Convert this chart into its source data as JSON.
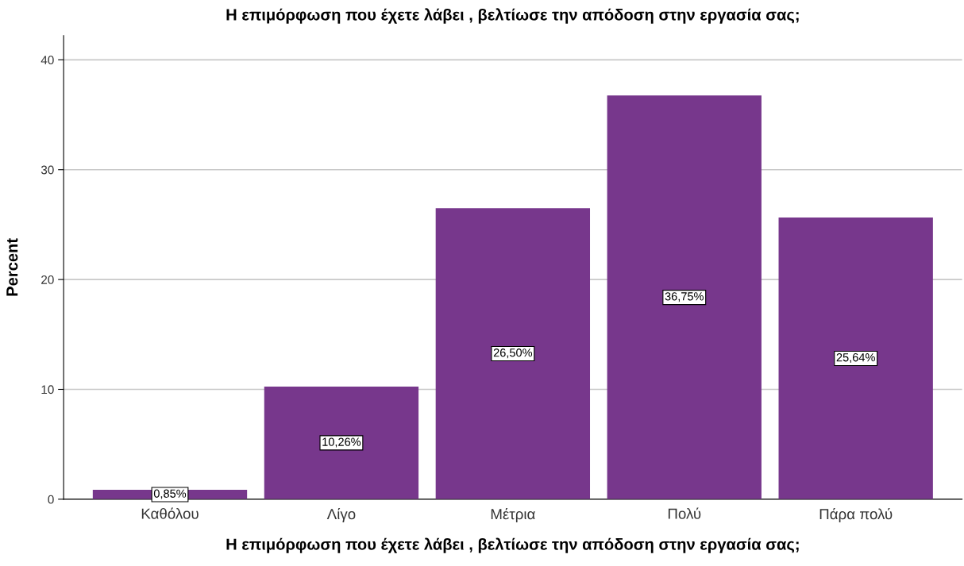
{
  "chart_data": {
    "type": "bar",
    "title": "Η επιμόρφωση που έχετε λάβει , βελτίωσε την απόδοση στην εργασία σας;",
    "xlabel": "Η επιμόρφωση που έχετε λάβει , βελτίωσε την απόδοση στην εργασία σας;",
    "ylabel": "Percent",
    "categories": [
      "Καθόλου",
      "Λίγο",
      "Μέτρια",
      "Πολύ",
      "Πάρα πολύ"
    ],
    "values": [
      0.85,
      10.26,
      26.5,
      36.75,
      25.64
    ],
    "value_labels": [
      "0,85%",
      "10,26%",
      "26,50%",
      "36,75%",
      "25,64%"
    ],
    "color": "#77378c",
    "ylim": [
      0,
      42.2
    ],
    "yticks": [
      0,
      10,
      20,
      30,
      40
    ],
    "grid": "y",
    "legend": false
  }
}
